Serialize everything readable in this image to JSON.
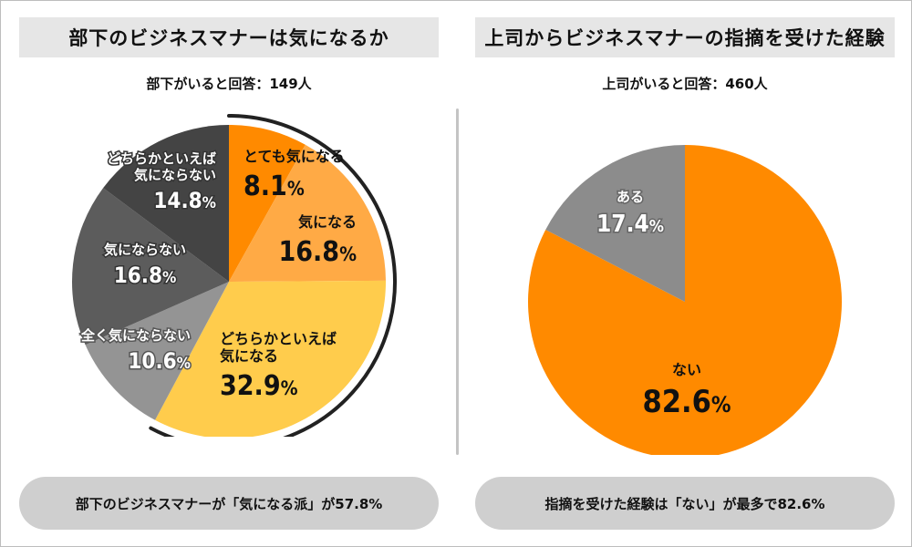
{
  "colors": {
    "orange": "#FF8A00",
    "light_orange": "#FFAA45",
    "yellow": "#FFCC4C",
    "dark_gray": "#444444",
    "mid_gray": "#5C5C5C",
    "gray": "#777777",
    "light_gray": "#949494"
  },
  "left_panel": {
    "title": "部下のビジネスマナーは気になるか",
    "subtitle": "部下がいると回答：149人",
    "summary": "部下のビジネスマナーが「気になる派」が57.8%"
  },
  "right_panel": {
    "title": "上司からビジネスマナーの指摘を受けた経験",
    "subtitle": "上司がいると回答：460人",
    "summary": "指摘を受けた経験は「ない」が最多で82.6%"
  },
  "chart_data": [
    {
      "type": "pie",
      "title": "部下のビジネスマナーは気になるか",
      "start_angle_deg": 0,
      "direction": "clockwise",
      "slices": [
        {
          "label_lines": [
            "とても気になる"
          ],
          "value": 8.1,
          "display": "8.1%",
          "color": "#FF8A00"
        },
        {
          "label_lines": [
            "気になる"
          ],
          "value": 16.8,
          "display": "16.8%",
          "color": "#FFAA45"
        },
        {
          "label_lines": [
            "どちらかといえば",
            "気になる"
          ],
          "value": 32.9,
          "display": "32.9%",
          "color": "#FFCC4C"
        },
        {
          "label_lines": [
            "全く気にならない"
          ],
          "value": 10.6,
          "display": "10.6%",
          "color": "#949494"
        },
        {
          "label_lines": [
            "気にならない"
          ],
          "value": 16.8,
          "display": "16.8%",
          "color": "#5C5C5C"
        },
        {
          "label_lines": [
            "どちらかといえば",
            "気にならない"
          ],
          "value": 14.8,
          "display": "14.8%",
          "color": "#444444"
        }
      ],
      "highlight_arc": {
        "covers_slices": [
          "とても気になる",
          "気になる",
          "どちらかといえば気になる"
        ],
        "total": "57.8%"
      }
    },
    {
      "type": "pie",
      "title": "上司からビジネスマナーの指摘を受けた経験",
      "start_angle_deg": 0,
      "direction": "clockwise",
      "slices": [
        {
          "label_lines": [
            "ない"
          ],
          "value": 82.6,
          "display": "82.6%",
          "color": "#FF8A00"
        },
        {
          "label_lines": [
            "ある"
          ],
          "value": 17.4,
          "display": "17.4%",
          "color": "#8C8C8C"
        }
      ]
    }
  ]
}
